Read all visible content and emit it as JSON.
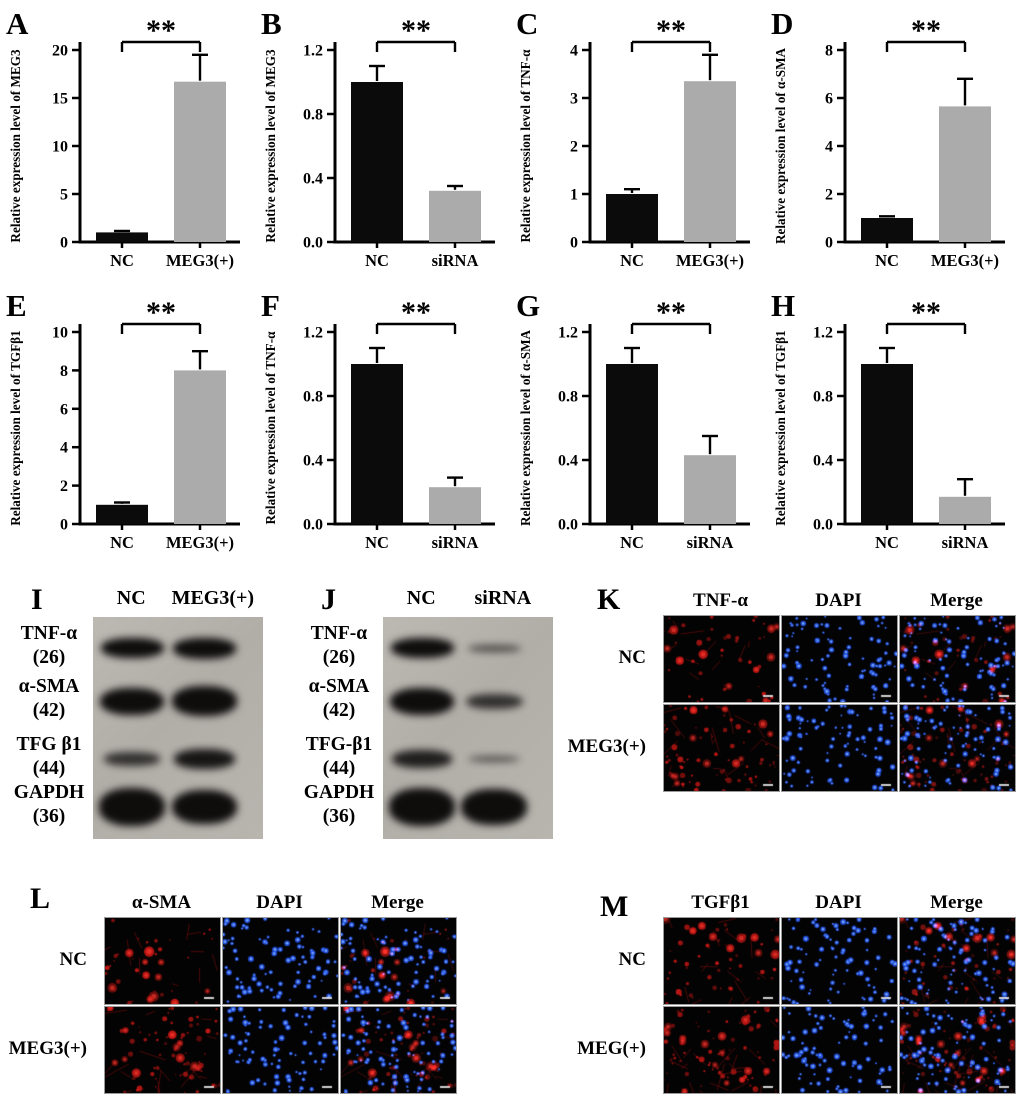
{
  "figure": {
    "description": "Multi-panel scientific figure: qPCR bar charts, western blots, immunofluorescence",
    "background": "#ffffff"
  },
  "colors": {
    "bar_black": "#0b0b0b",
    "bar_gray": "#ababab",
    "axis": "#000000",
    "blot_background": "#b3b0aa",
    "blot_band": "#0e0d0c",
    "micro_red": "#cd1816",
    "micro_blue": "#2d5df0",
    "micro_background": "#030303"
  },
  "chart_data": [
    {
      "panel": "A",
      "type": "bar",
      "ylabel": "Relative expression level of MEG3",
      "categories": [
        "NC",
        "MEG3(+)"
      ],
      "values": [
        1.0,
        16.7
      ],
      "errors": [
        0.15,
        2.8
      ],
      "ylim": [
        0,
        20
      ],
      "yticks": [
        0,
        5,
        10,
        15,
        20
      ],
      "tick_decimals": 0,
      "significance": "**",
      "bar_colors": [
        "black",
        "gray"
      ]
    },
    {
      "panel": "B",
      "type": "bar",
      "ylabel": "Relative expression level of MEG3",
      "categories": [
        "NC",
        "siRNA"
      ],
      "values": [
        1.0,
        0.32
      ],
      "errors": [
        0.1,
        0.03
      ],
      "ylim": [
        0,
        1.2
      ],
      "yticks": [
        0,
        0.4,
        0.8,
        1.2
      ],
      "tick_decimals": 1,
      "significance": "**",
      "bar_colors": [
        "black",
        "gray"
      ]
    },
    {
      "panel": "C",
      "type": "bar",
      "ylabel": "Relative expression level of TNF-α",
      "categories": [
        "NC",
        "MEG3(+)"
      ],
      "values": [
        1.0,
        3.35
      ],
      "errors": [
        0.1,
        0.55
      ],
      "ylim": [
        0,
        4
      ],
      "yticks": [
        0,
        1,
        2,
        3,
        4
      ],
      "tick_decimals": 0,
      "significance": "**",
      "bar_colors": [
        "black",
        "gray"
      ]
    },
    {
      "panel": "D",
      "type": "bar",
      "ylabel": "Relative expression level of α-SMA",
      "categories": [
        "NC",
        "MEG3(+)"
      ],
      "values": [
        1.0,
        5.65
      ],
      "errors": [
        0.07,
        1.15
      ],
      "ylim": [
        0,
        8
      ],
      "yticks": [
        0,
        2,
        4,
        6,
        8
      ],
      "tick_decimals": 0,
      "significance": "**",
      "bar_colors": [
        "black",
        "gray"
      ]
    },
    {
      "panel": "E",
      "type": "bar",
      "ylabel": "Relative expression level of TGFβ1",
      "categories": [
        "NC",
        "MEG3(+)"
      ],
      "values": [
        1.0,
        8.0
      ],
      "errors": [
        0.12,
        1.0
      ],
      "ylim": [
        0,
        10
      ],
      "yticks": [
        0,
        2,
        4,
        6,
        8,
        10
      ],
      "tick_decimals": 0,
      "significance": "**",
      "bar_colors": [
        "black",
        "gray"
      ]
    },
    {
      "panel": "F",
      "type": "bar",
      "ylabel": "Relative expression level of TNF-α",
      "categories": [
        "NC",
        "siRNA"
      ],
      "values": [
        1.0,
        0.23
      ],
      "errors": [
        0.1,
        0.06
      ],
      "ylim": [
        0,
        1.2
      ],
      "yticks": [
        0,
        0.4,
        0.8,
        1.2
      ],
      "tick_decimals": 1,
      "significance": "**",
      "bar_colors": [
        "black",
        "gray"
      ]
    },
    {
      "panel": "G",
      "type": "bar",
      "ylabel": "Relative expression level of α-SMA",
      "categories": [
        "NC",
        "siRNA"
      ],
      "values": [
        1.0,
        0.43
      ],
      "errors": [
        0.1,
        0.12
      ],
      "ylim": [
        0,
        1.2
      ],
      "yticks": [
        0,
        0.4,
        0.8,
        1.2
      ],
      "tick_decimals": 1,
      "significance": "**",
      "bar_colors": [
        "black",
        "gray"
      ]
    },
    {
      "panel": "H",
      "type": "bar",
      "ylabel": "Relative expression level of TGFβ1",
      "categories": [
        "NC",
        "siRNA"
      ],
      "values": [
        1.0,
        0.17
      ],
      "errors": [
        0.1,
        0.11
      ],
      "ylim": [
        0,
        1.2
      ],
      "yticks": [
        0,
        0.4,
        0.8,
        1.2
      ],
      "tick_decimals": 1,
      "significance": "**",
      "bar_colors": [
        "black",
        "gray"
      ]
    }
  ],
  "blots": [
    {
      "panel": "I",
      "lanes": [
        "NC",
        "MEG3(+)"
      ],
      "rows": [
        {
          "protein": "TNF-α",
          "kda": "(26)",
          "bands": [
            1.0,
            1.05
          ]
        },
        {
          "protein": "α-SMA",
          "kda": "(42)",
          "bands": [
            1.05,
            1.15
          ]
        },
        {
          "protein": "TFG β1",
          "kda": "(44)",
          "bands": [
            0.6,
            0.9
          ]
        },
        {
          "protein": "GAPDH",
          "kda": "(36)",
          "bands": [
            1.25,
            1.15
          ]
        }
      ]
    },
    {
      "panel": "J",
      "lanes": [
        "NC",
        "siRNA"
      ],
      "rows": [
        {
          "protein": "TNF-α",
          "kda": "(26)",
          "bands": [
            1.0,
            0.35
          ]
        },
        {
          "protein": "α-SMA",
          "kda": "(42)",
          "bands": [
            1.05,
            0.6
          ]
        },
        {
          "protein": "TFG-β1",
          "kda": "(44)",
          "bands": [
            0.8,
            0.3
          ]
        },
        {
          "protein": "GAPDH",
          "kda": "(36)",
          "bands": [
            1.25,
            1.2
          ]
        }
      ]
    }
  ],
  "micro_panels": [
    {
      "panel": "K",
      "columns": [
        "TNF-α",
        "DAPI",
        "Merge"
      ],
      "channels": [
        "red",
        "dapi",
        "merge"
      ],
      "rows": [
        {
          "label": "NC",
          "red_intensity": 0.8
        },
        {
          "label": "MEG3(+)",
          "red_intensity": 1.4
        }
      ]
    },
    {
      "panel": "L",
      "columns": [
        "α-SMA",
        "DAPI",
        "Merge"
      ],
      "channels": [
        "red",
        "dapi",
        "merge"
      ],
      "rows": [
        {
          "label": "NC",
          "red_intensity": 0.7
        },
        {
          "label": "MEG3(+)",
          "red_intensity": 1.35
        }
      ]
    },
    {
      "panel": "M",
      "columns": [
        "TGFβ1",
        "DAPI",
        "Merge"
      ],
      "channels": [
        "red",
        "dapi",
        "merge"
      ],
      "rows": [
        {
          "label": "NC",
          "red_intensity": 1.0
        },
        {
          "label": "MEG(+)",
          "red_intensity": 1.5
        }
      ]
    }
  ]
}
